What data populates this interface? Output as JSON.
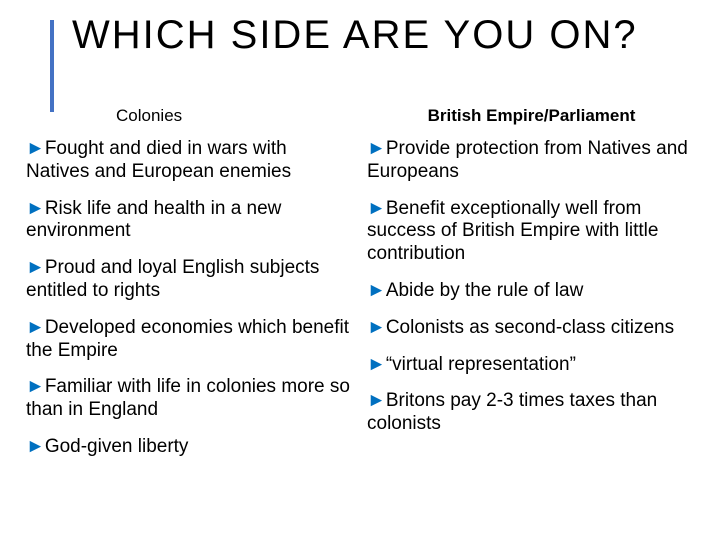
{
  "title": "WHICH SIDE ARE YOU ON?",
  "accent_color": "#4472c4",
  "bullet_color": "#0070c0",
  "left": {
    "heading": "Colonies",
    "items": [
      "Fought and died in wars with Natives and European enemies",
      "Risk life and health in a new environment",
      "Proud and loyal English subjects entitled to rights",
      "Developed economies which benefit the Empire",
      "Familiar with life in colonies more so than in England",
      "God-given liberty"
    ]
  },
  "right": {
    "heading": "British Empire/Parliament",
    "items": [
      "Provide protection from Natives and Europeans",
      "Benefit exceptionally well from success of British Empire with little contribution",
      "Abide by the rule of law",
      "Colonists as second-class citizens",
      "“virtual representation”",
      "Britons pay 2-3 times taxes than colonists"
    ]
  }
}
